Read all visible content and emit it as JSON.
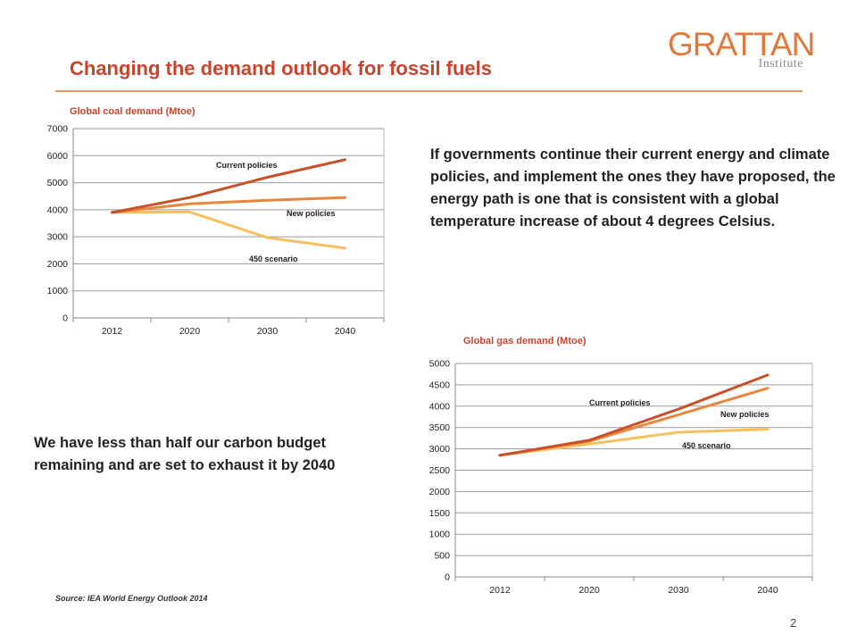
{
  "logo": {
    "word": "GRATTAN",
    "sub": "Institute"
  },
  "title": "Changing the demand outlook for fossil fuels",
  "text_top": "If governments continue their current energy and climate policies, and implement the ones they have proposed, the energy path is one that is consistent with a global temperature increase of about 4 degrees Celsius.",
  "text_bottom": "We have less than half our carbon budget remaining and are set to exhaust it by 2040",
  "source": "Source: IEA World Energy Outlook 2014",
  "page_number": "2",
  "colors": {
    "current_policies": "#c8502a",
    "new_policies": "#e8863e",
    "scenario_450": "#f5c060",
    "grid": "#9a9a9a",
    "title": "#c8442c"
  },
  "chart_data": [
    {
      "type": "line",
      "title": "Global coal demand (Mtoe)",
      "categories": [
        "2012",
        "2020",
        "2030",
        "2040"
      ],
      "ylim": [
        0,
        7000
      ],
      "yticks": [
        0,
        1000,
        2000,
        3000,
        4000,
        5000,
        6000,
        7000
      ],
      "grid": true,
      "legend": "inline labels",
      "series": [
        {
          "name": "Current policies",
          "values": [
            3900,
            4450,
            5200,
            5850
          ]
        },
        {
          "name": "New policies",
          "values": [
            3900,
            4220,
            4350,
            4450
          ]
        },
        {
          "name": "450 scenario",
          "values": [
            3900,
            3920,
            2970,
            2580
          ]
        }
      ]
    },
    {
      "type": "line",
      "title": "Global gas demand (Mtoe)",
      "categories": [
        "2012",
        "2020",
        "2030",
        "2040"
      ],
      "ylim": [
        0,
        5000
      ],
      "yticks": [
        0,
        500,
        1000,
        1500,
        2000,
        2500,
        3000,
        3500,
        4000,
        4500,
        5000
      ],
      "grid": true,
      "legend": "inline labels",
      "series": [
        {
          "name": "Current policies",
          "values": [
            2850,
            3200,
            3930,
            4730
          ]
        },
        {
          "name": "New policies",
          "values": [
            2850,
            3180,
            3800,
            4420
          ]
        },
        {
          "name": "450 scenario",
          "values": [
            2850,
            3110,
            3390,
            3460
          ]
        }
      ]
    }
  ]
}
